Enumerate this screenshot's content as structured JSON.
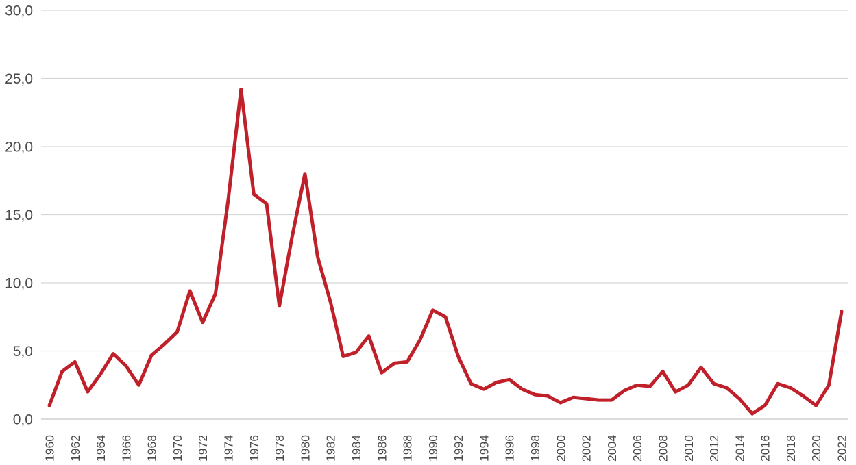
{
  "chart_data": {
    "type": "line",
    "title": "",
    "xlabel": "",
    "ylabel": "",
    "ylim": [
      0,
      30
    ],
    "y_ticks": [
      "0,0",
      "5,0",
      "10,0",
      "15,0",
      "20,0",
      "25,0",
      "30,0"
    ],
    "x_tick_labels": [
      "1960",
      "1962",
      "1964",
      "1966",
      "1968",
      "1970",
      "1972",
      "1974",
      "1976",
      "1978",
      "1980",
      "1982",
      "1984",
      "1986",
      "1988",
      "1990",
      "1992",
      "1994",
      "1996",
      "1998",
      "2000",
      "2002",
      "2004",
      "2006",
      "2008",
      "2010",
      "2012",
      "2014",
      "2016",
      "2018",
      "2020",
      "2022"
    ],
    "grid": true,
    "legend": null,
    "color": "#c0202a",
    "x": [
      1960,
      1961,
      1962,
      1963,
      1964,
      1965,
      1966,
      1967,
      1968,
      1969,
      1970,
      1971,
      1972,
      1973,
      1974,
      1975,
      1976,
      1977,
      1978,
      1979,
      1980,
      1981,
      1982,
      1983,
      1984,
      1985,
      1986,
      1987,
      1988,
      1989,
      1990,
      1991,
      1992,
      1993,
      1994,
      1995,
      1996,
      1997,
      1998,
      1999,
      2000,
      2001,
      2002,
      2003,
      2004,
      2005,
      2006,
      2007,
      2008,
      2009,
      2010,
      2011,
      2012,
      2013,
      2014,
      2015,
      2016,
      2017,
      2018,
      2019,
      2020,
      2021,
      2022
    ],
    "series": [
      {
        "name": "",
        "values": [
          1.0,
          3.5,
          4.2,
          2.0,
          3.3,
          4.8,
          3.9,
          2.5,
          4.7,
          5.5,
          6.4,
          9.4,
          7.1,
          9.2,
          16.1,
          24.2,
          16.5,
          15.8,
          8.3,
          13.4,
          18.0,
          11.9,
          8.6,
          4.6,
          4.9,
          6.1,
          3.4,
          4.1,
          4.2,
          5.8,
          8.0,
          7.5,
          4.6,
          2.6,
          2.2,
          2.7,
          2.9,
          2.2,
          1.8,
          1.7,
          1.2,
          1.6,
          1.5,
          1.4,
          1.4,
          2.1,
          2.5,
          2.4,
          3.5,
          2.0,
          2.5,
          3.8,
          2.6,
          2.3,
          1.5,
          0.4,
          1.0,
          2.6,
          2.3,
          1.7,
          1.0,
          2.5,
          7.9
        ]
      }
    ]
  }
}
